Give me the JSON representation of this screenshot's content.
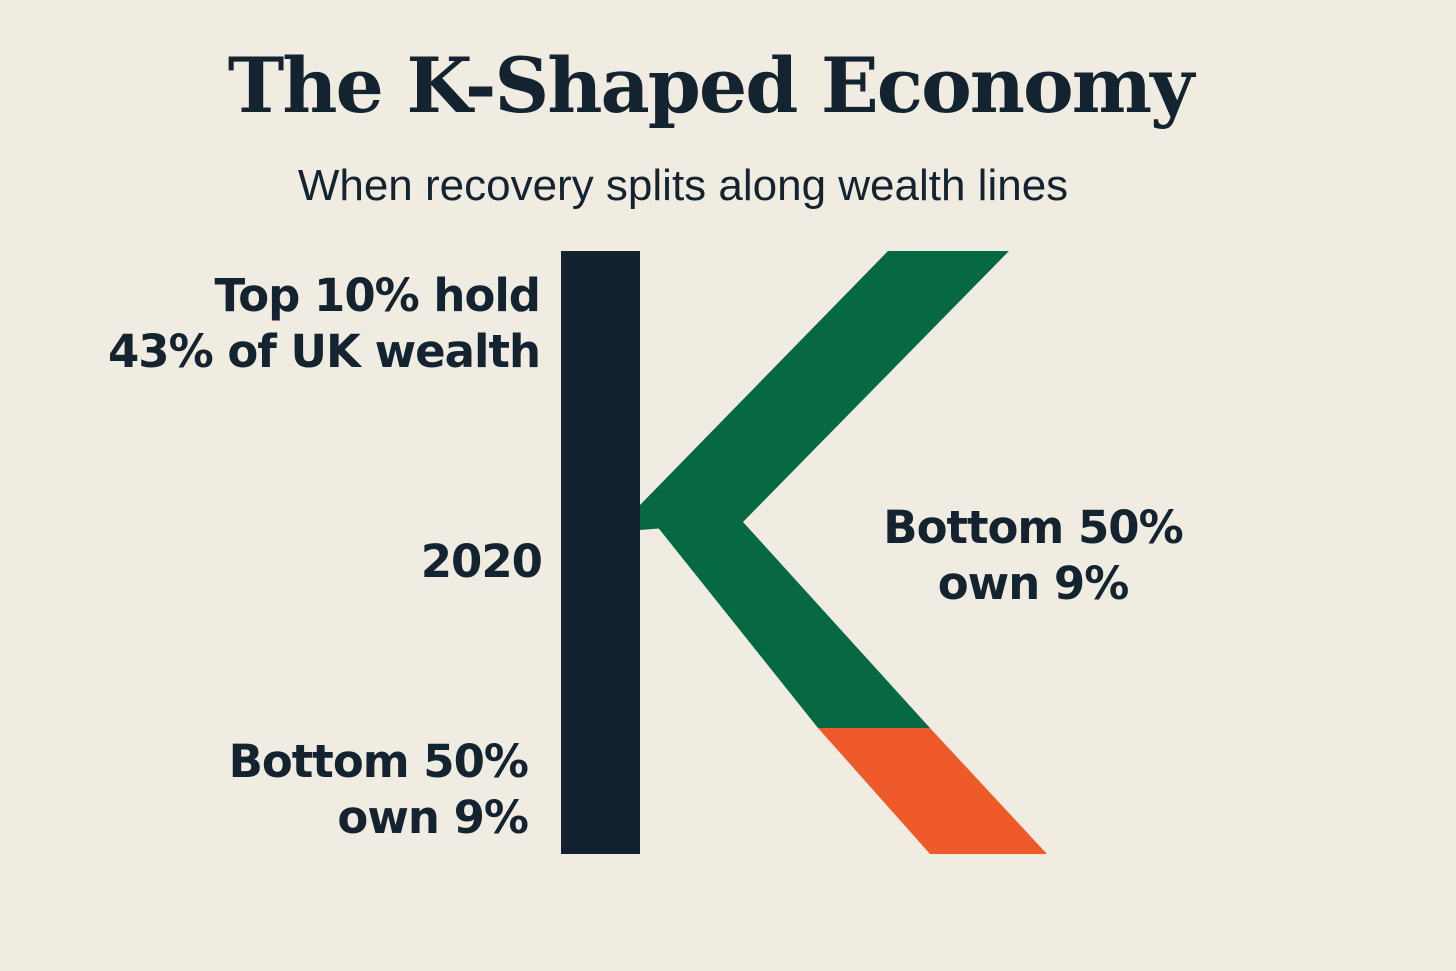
{
  "header": {
    "title": "The K-Shaped Economy",
    "subtitle": "When recovery splits along wealth lines"
  },
  "labels": {
    "top_left": [
      "Top 10% hold",
      "43% of UK wealth"
    ],
    "year": "2020",
    "bottom_left": [
      "Bottom 50%",
      "own 9%"
    ],
    "right": [
      "Bottom 50%",
      "own 9%"
    ]
  },
  "colors": {
    "background": "#F1ECE1",
    "text": "#13232F",
    "stem": "#12222F",
    "upper_arm": "#066944",
    "lower_arm": "#066944",
    "lower_arm_tip": "#EE5A2A"
  }
}
